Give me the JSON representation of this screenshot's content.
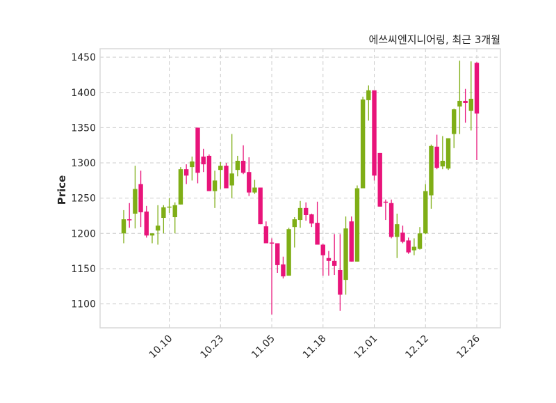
{
  "chart_data": {
    "type": "candlestick",
    "title": "에쓰씨엔지니어링, 최근 3개월",
    "xlabel": "",
    "ylabel": "Price",
    "ylim": [
      1066,
      1462
    ],
    "yticks": [
      1100,
      1150,
      1200,
      1250,
      1300,
      1350,
      1400,
      1450
    ],
    "xticks": [
      {
        "index": 8,
        "label": "10.10"
      },
      {
        "index": 17,
        "label": "10.23"
      },
      {
        "index": 26,
        "label": "11.05"
      },
      {
        "index": 35,
        "label": "11.18"
      },
      {
        "index": 44,
        "label": "12.01"
      },
      {
        "index": 53,
        "label": "12.12"
      },
      {
        "index": 62,
        "label": "12.26"
      }
    ],
    "grid": true,
    "colors": {
      "up": "#7fae16",
      "down": "#e8147a",
      "grid": "#cccccc",
      "frame": "#d9d9d9"
    },
    "ohlc": [
      [
        1200,
        1233,
        1186,
        1220
      ],
      [
        1220,
        1243,
        1208,
        1219
      ],
      [
        1228,
        1296,
        1207,
        1263
      ],
      [
        1270,
        1289,
        1209,
        1230
      ],
      [
        1231,
        1239,
        1194,
        1197
      ],
      [
        1197,
        1200,
        1186,
        1200
      ],
      [
        1204,
        1240,
        1184,
        1211
      ],
      [
        1222,
        1240,
        1200,
        1237
      ],
      [
        1237,
        1250,
        1229,
        1238
      ],
      [
        1223,
        1244,
        1200,
        1240
      ],
      [
        1241,
        1294,
        1241,
        1291
      ],
      [
        1291,
        1298,
        1270,
        1282
      ],
      [
        1294,
        1309,
        1275,
        1302
      ],
      [
        1350,
        1350,
        1271,
        1286
      ],
      [
        1309,
        1320,
        1287,
        1298
      ],
      [
        1310,
        1312,
        1260,
        1260
      ],
      [
        1260,
        1289,
        1236,
        1275
      ],
      [
        1290,
        1301,
        1263,
        1296
      ],
      [
        1296,
        1300,
        1264,
        1264
      ],
      [
        1268,
        1341,
        1250,
        1285
      ],
      [
        1290,
        1310,
        1281,
        1303
      ],
      [
        1303,
        1325,
        1284,
        1286
      ],
      [
        1287,
        1308,
        1253,
        1258
      ],
      [
        1258,
        1276,
        1256,
        1265
      ],
      [
        1265,
        1265,
        1213,
        1213
      ],
      [
        1210,
        1217,
        1186,
        1186
      ],
      [
        1187,
        1193,
        1085,
        1186
      ],
      [
        1186,
        1186,
        1144,
        1155
      ],
      [
        1156,
        1167,
        1136,
        1139
      ],
      [
        1140,
        1208,
        1140,
        1206
      ],
      [
        1209,
        1223,
        1180,
        1220
      ],
      [
        1219,
        1246,
        1208,
        1236
      ],
      [
        1236,
        1244,
        1218,
        1226
      ],
      [
        1227,
        1228,
        1209,
        1214
      ],
      [
        1215,
        1245,
        1184,
        1184
      ],
      [
        1184,
        1185,
        1140,
        1169
      ],
      [
        1165,
        1175,
        1140,
        1161
      ],
      [
        1161,
        1199,
        1141,
        1154
      ],
      [
        1148,
        1199,
        1090,
        1113
      ],
      [
        1134,
        1224,
        1113,
        1207
      ],
      [
        1217,
        1224,
        1160,
        1160
      ],
      [
        1160,
        1268,
        1160,
        1264
      ],
      [
        1264,
        1394,
        1264,
        1390
      ],
      [
        1389,
        1410,
        1360,
        1403
      ],
      [
        1403,
        1403,
        1275,
        1282
      ],
      [
        1314,
        1314,
        1238,
        1238
      ],
      [
        1245,
        1248,
        1219,
        1244
      ],
      [
        1243,
        1248,
        1193,
        1195
      ],
      [
        1195,
        1228,
        1165,
        1213
      ],
      [
        1201,
        1211,
        1186,
        1188
      ],
      [
        1190,
        1194,
        1171,
        1173
      ],
      [
        1176,
        1193,
        1169,
        1181
      ],
      [
        1178,
        1209,
        1177,
        1200
      ],
      [
        1200,
        1270,
        1199,
        1260
      ],
      [
        1254,
        1326,
        1235,
        1324
      ],
      [
        1323,
        1340,
        1291,
        1293
      ],
      [
        1295,
        1338,
        1291,
        1303
      ],
      [
        1292,
        1335,
        1290,
        1335
      ],
      [
        1341,
        1377,
        1321,
        1376
      ],
      [
        1380,
        1445,
        1341,
        1388
      ],
      [
        1388,
        1405,
        1357,
        1385
      ],
      [
        1374,
        1444,
        1346,
        1391
      ],
      [
        1442,
        1443,
        1304,
        1370
      ]
    ]
  }
}
